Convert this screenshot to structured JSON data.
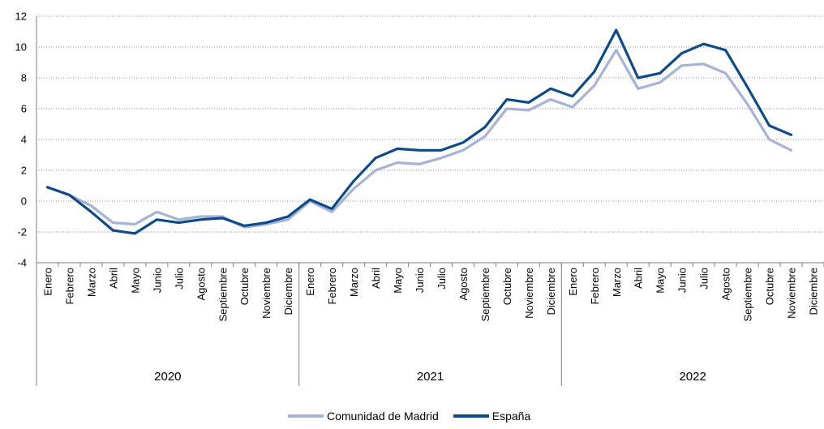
{
  "chart_data": {
    "type": "line",
    "title": "",
    "xlabel": "",
    "ylabel": "",
    "ylim": [
      -4,
      12
    ],
    "yticks": [
      -4,
      -2,
      0,
      2,
      4,
      6,
      8,
      10,
      12
    ],
    "ytick_labels": [
      "-4",
      "-2",
      "0",
      "2",
      "4",
      "6",
      "8",
      "10",
      "12"
    ],
    "grid": "horizontal dotted",
    "legend_position": "bottom",
    "groups": [
      {
        "label": "2020",
        "months": [
          "Enero",
          "Febrero",
          "Marzo",
          "Abril",
          "Mayo",
          "Junio",
          "Julio",
          "Agosto",
          "Septiembre",
          "Octubre",
          "Noviembre",
          "Diciembre"
        ]
      },
      {
        "label": "2021",
        "months": [
          "Enero",
          "Febrero",
          "Marzo",
          "Abril",
          "Mayo",
          "Junio",
          "Julio",
          "Agosto",
          "Septiembre",
          "Octubre",
          "Noviembre",
          "Diciembre"
        ]
      },
      {
        "label": "2022",
        "months": [
          "Enero",
          "Febrero",
          "Marzo",
          "Abril",
          "Mayo",
          "Junio",
          "Julio",
          "Agosto",
          "Septiembre",
          "Octubre",
          "Noviembre",
          "Diciembre"
        ]
      }
    ],
    "series": [
      {
        "name": "Comunidad de Madrid",
        "color": "#a7b3d6",
        "values": [
          0.9,
          0.4,
          -0.3,
          -1.4,
          -1.5,
          -0.7,
          -1.2,
          -1.0,
          -1.0,
          -1.7,
          -1.5,
          -1.2,
          0.0,
          -0.7,
          0.8,
          2.0,
          2.5,
          2.4,
          2.8,
          3.3,
          4.2,
          6.0,
          5.9,
          6.6,
          6.1,
          7.5,
          9.8,
          7.3,
          7.7,
          8.8,
          8.9,
          8.3,
          6.3,
          4.0,
          3.3,
          null
        ]
      },
      {
        "name": "España",
        "color": "#0e4a8a",
        "values": [
          0.9,
          0.4,
          -0.7,
          -1.9,
          -2.1,
          -1.2,
          -1.4,
          -1.2,
          -1.1,
          -1.6,
          -1.4,
          -1.0,
          0.1,
          -0.5,
          1.3,
          2.8,
          3.4,
          3.3,
          3.3,
          3.8,
          4.8,
          6.6,
          6.4,
          7.3,
          6.8,
          8.4,
          11.1,
          8.0,
          8.3,
          9.6,
          10.2,
          9.8,
          7.4,
          4.9,
          4.3,
          null
        ]
      }
    ]
  }
}
